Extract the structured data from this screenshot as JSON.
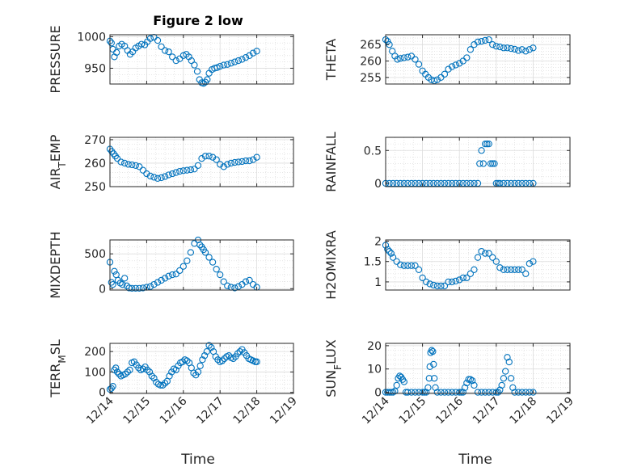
{
  "figure": {
    "title": "Figure 2 low",
    "xlabel": "Time"
  },
  "chart_data": [
    {
      "type": "scatter",
      "title": "Figure 2 low",
      "ylabel": "PRESSURE",
      "ylim": [
        925,
        1003
      ],
      "yticks": [
        950,
        1000
      ],
      "xticks": [
        "12/14",
        "12/15",
        "12/16",
        "12/17",
        "12/18",
        "12/19"
      ],
      "color": "#0072BD",
      "grid": true,
      "x": [
        0,
        0.04,
        0.08,
        0.12,
        0.18,
        0.25,
        0.32,
        0.4,
        0.48,
        0.55,
        0.62,
        0.7,
        0.78,
        0.86,
        0.95,
        1.02,
        1.1,
        1.2,
        1.3,
        1.4,
        1.5,
        1.6,
        1.7,
        1.8,
        1.9,
        2.0,
        2.08,
        2.15,
        2.22,
        2.3,
        2.38,
        2.44,
        2.5,
        2.55,
        2.6,
        2.65,
        2.7,
        2.78,
        2.85,
        2.92,
        3.0,
        3.1,
        3.2,
        3.3,
        3.4,
        3.5,
        3.6,
        3.7,
        3.8,
        3.9,
        4.0
      ],
      "y": [
        993,
        990,
        980,
        968,
        975,
        985,
        988,
        985,
        978,
        972,
        976,
        982,
        985,
        988,
        987,
        992,
        997,
        999,
        994,
        984,
        978,
        976,
        968,
        962,
        965,
        970,
        972,
        968,
        962,
        955,
        945,
        932,
        927,
        926,
        928,
        932,
        942,
        948,
        950,
        951,
        953,
        955,
        956,
        958,
        960,
        962,
        964,
        967,
        970,
        974,
        977
      ]
    },
    {
      "type": "scatter",
      "ylabel": "THETA",
      "ylim": [
        253,
        268
      ],
      "yticks": [
        255,
        260,
        265
      ],
      "xticks": [
        "12/14",
        "12/15",
        "12/16",
        "12/17",
        "12/18",
        "12/19"
      ],
      "color": "#0072BD",
      "grid": true,
      "x": [
        0,
        0.05,
        0.1,
        0.18,
        0.25,
        0.32,
        0.4,
        0.5,
        0.6,
        0.7,
        0.8,
        0.9,
        1.0,
        1.08,
        1.16,
        1.24,
        1.32,
        1.4,
        1.5,
        1.6,
        1.7,
        1.8,
        1.9,
        2.0,
        2.1,
        2.2,
        2.3,
        2.4,
        2.5,
        2.6,
        2.7,
        2.8,
        2.9,
        3.0,
        3.1,
        3.2,
        3.3,
        3.4,
        3.5,
        3.6,
        3.7,
        3.8,
        3.9,
        4.0
      ],
      "y": [
        266.5,
        266,
        265,
        263,
        261.5,
        260.5,
        260.8,
        261,
        261.2,
        261.5,
        260.5,
        259,
        257,
        256,
        255,
        254.3,
        254,
        254.3,
        255,
        256,
        257.5,
        258.3,
        258.8,
        259.3,
        260,
        261,
        263.5,
        265,
        265.8,
        266,
        266.3,
        266.5,
        265,
        264.5,
        264.3,
        264,
        264,
        263.8,
        263.6,
        263.2,
        263.5,
        263,
        263.5,
        264
      ]
    },
    {
      "type": "scatter",
      "ylabel": "AIR_TEMP",
      "ylim": [
        250,
        271
      ],
      "yticks": [
        250,
        260,
        270
      ],
      "xticks": [
        "12/14",
        "12/15",
        "12/16",
        "12/17",
        "12/18",
        "12/19"
      ],
      "color": "#0072BD",
      "grid": true,
      "x": [
        0,
        0.05,
        0.1,
        0.15,
        0.2,
        0.3,
        0.4,
        0.5,
        0.6,
        0.7,
        0.8,
        0.9,
        1.0,
        1.1,
        1.2,
        1.3,
        1.4,
        1.5,
        1.6,
        1.7,
        1.8,
        1.9,
        2.0,
        2.1,
        2.2,
        2.3,
        2.4,
        2.5,
        2.6,
        2.7,
        2.8,
        2.9,
        3.0,
        3.1,
        3.2,
        3.3,
        3.4,
        3.5,
        3.6,
        3.7,
        3.8,
        3.9,
        4.0
      ],
      "y": [
        266,
        265,
        264,
        263,
        262,
        260.5,
        260,
        259.5,
        259.3,
        259,
        258.5,
        257,
        255.5,
        254.5,
        254,
        253.5,
        253.8,
        254.3,
        255,
        255.5,
        256,
        256.5,
        256.8,
        257,
        257.2,
        257.5,
        259,
        262,
        263,
        263,
        262.5,
        261.5,
        259.5,
        258.5,
        259.5,
        260,
        260.3,
        260.5,
        260.7,
        261,
        261,
        261.5,
        262.5
      ]
    },
    {
      "type": "scatter",
      "ylabel": "RAINFALL",
      "ylim": [
        -0.05,
        0.7
      ],
      "yticks": [
        0,
        0.5
      ],
      "xticks": [
        "12/14",
        "12/15",
        "12/16",
        "12/17",
        "12/18",
        "12/19"
      ],
      "color": "#0072BD",
      "grid": true,
      "x": [
        0,
        0.1,
        0.2,
        0.3,
        0.4,
        0.5,
        0.6,
        0.7,
        0.8,
        0.9,
        1.0,
        1.1,
        1.2,
        1.3,
        1.4,
        1.5,
        1.6,
        1.7,
        1.8,
        1.9,
        2.0,
        2.1,
        2.2,
        2.3,
        2.4,
        2.5,
        2.55,
        2.6,
        2.65,
        2.7,
        2.75,
        2.8,
        2.85,
        2.9,
        2.95,
        3.0,
        3.05,
        3.1,
        3.2,
        3.3,
        3.4,
        3.5,
        3.6,
        3.7,
        3.8,
        3.9,
        4.0
      ],
      "y": [
        0,
        0,
        0,
        0,
        0,
        0,
        0,
        0,
        0,
        0,
        0,
        0,
        0,
        0,
        0,
        0,
        0,
        0,
        0,
        0,
        0,
        0,
        0,
        0,
        0,
        0,
        0.3,
        0.5,
        0.3,
        0.6,
        0.6,
        0.6,
        0.3,
        0.3,
        0.3,
        0,
        0,
        0,
        0,
        0,
        0,
        0,
        0,
        0,
        0,
        0,
        0
      ]
    },
    {
      "type": "scatter",
      "ylabel": "MIXDEPTH",
      "ylim": [
        -20,
        700
      ],
      "yticks": [
        0,
        500
      ],
      "xticks": [
        "12/14",
        "12/15",
        "12/16",
        "12/17",
        "12/18",
        "12/19"
      ],
      "color": "#0072BD",
      "grid": true,
      "x": [
        0,
        0.04,
        0.08,
        0.12,
        0.17,
        0.22,
        0.28,
        0.34,
        0.4,
        0.46,
        0.52,
        0.6,
        0.7,
        0.8,
        0.9,
        1.0,
        1.1,
        1.2,
        1.3,
        1.4,
        1.5,
        1.6,
        1.7,
        1.8,
        1.9,
        2.0,
        2.1,
        2.2,
        2.3,
        2.4,
        2.45,
        2.5,
        2.55,
        2.6,
        2.7,
        2.8,
        2.9,
        3.0,
        3.1,
        3.2,
        3.3,
        3.4,
        3.5,
        3.6,
        3.7,
        3.8,
        3.9,
        4.0
      ],
      "y": [
        380,
        90,
        60,
        250,
        200,
        120,
        80,
        60,
        150,
        40,
        10,
        5,
        5,
        5,
        10,
        20,
        30,
        60,
        90,
        120,
        150,
        180,
        200,
        210,
        260,
        320,
        400,
        520,
        650,
        700,
        630,
        600,
        560,
        520,
        450,
        380,
        280,
        200,
        100,
        40,
        20,
        10,
        30,
        60,
        100,
        120,
        60,
        20
      ]
    },
    {
      "type": "scatter",
      "ylabel": "H2OMIXRA",
      "ylim": [
        0.8,
        2.03
      ],
      "yticks": [
        1,
        1.5,
        2
      ],
      "xticks": [
        "12/14",
        "12/15",
        "12/16",
        "12/17",
        "12/18",
        "12/19"
      ],
      "color": "#0072BD",
      "grid": true,
      "x": [
        0,
        0.05,
        0.1,
        0.15,
        0.2,
        0.3,
        0.4,
        0.5,
        0.6,
        0.7,
        0.8,
        0.9,
        1.0,
        1.1,
        1.2,
        1.3,
        1.4,
        1.5,
        1.6,
        1.7,
        1.8,
        1.9,
        2.0,
        2.1,
        2.2,
        2.3,
        2.4,
        2.5,
        2.6,
        2.7,
        2.8,
        2.9,
        3.0,
        3.1,
        3.2,
        3.3,
        3.4,
        3.5,
        3.6,
        3.7,
        3.8,
        3.9,
        4.0
      ],
      "y": [
        1.9,
        1.8,
        1.75,
        1.7,
        1.6,
        1.5,
        1.42,
        1.4,
        1.4,
        1.4,
        1.4,
        1.3,
        1.1,
        1.0,
        0.95,
        0.92,
        0.9,
        0.9,
        0.9,
        1.0,
        1.0,
        1.02,
        1.05,
        1.1,
        1.1,
        1.2,
        1.3,
        1.6,
        1.75,
        1.7,
        1.7,
        1.6,
        1.5,
        1.35,
        1.3,
        1.3,
        1.3,
        1.3,
        1.3,
        1.3,
        1.2,
        1.45,
        1.5
      ]
    },
    {
      "type": "scatter",
      "ylabel": "TERR_MSL",
      "ylim": [
        -5,
        240
      ],
      "yticks": [
        0,
        100,
        200
      ],
      "xticks": [
        "12/14",
        "12/15",
        "12/16",
        "12/17",
        "12/18",
        "12/19"
      ],
      "color": "#0072BD",
      "grid": true,
      "x": [
        0,
        0.04,
        0.08,
        0.12,
        0.16,
        0.2,
        0.25,
        0.3,
        0.36,
        0.42,
        0.48,
        0.54,
        0.6,
        0.66,
        0.72,
        0.78,
        0.84,
        0.9,
        0.96,
        1.02,
        1.08,
        1.14,
        1.2,
        1.26,
        1.32,
        1.38,
        1.44,
        1.5,
        1.56,
        1.62,
        1.68,
        1.74,
        1.8,
        1.86,
        1.92,
        1.98,
        2.04,
        2.1,
        2.16,
        2.22,
        2.28,
        2.34,
        2.4,
        2.46,
        2.52,
        2.58,
        2.64,
        2.7,
        2.76,
        2.82,
        2.88,
        2.94,
        3.0,
        3.06,
        3.12,
        3.18,
        3.24,
        3.3,
        3.36,
        3.42,
        3.48,
        3.54,
        3.6,
        3.66,
        3.72,
        3.78,
        3.84,
        3.9,
        3.96,
        4.0
      ],
      "y": [
        15,
        20,
        30,
        110,
        120,
        100,
        90,
        80,
        85,
        90,
        100,
        110,
        145,
        150,
        135,
        120,
        110,
        115,
        125,
        110,
        100,
        80,
        70,
        50,
        40,
        35,
        35,
        45,
        55,
        80,
        100,
        115,
        110,
        130,
        145,
        150,
        160,
        155,
        145,
        120,
        95,
        85,
        100,
        130,
        160,
        180,
        200,
        230,
        220,
        200,
        175,
        160,
        150,
        155,
        165,
        175,
        180,
        170,
        165,
        175,
        190,
        200,
        210,
        195,
        180,
        165,
        160,
        155,
        150,
        150
      ]
    },
    {
      "type": "scatter",
      "ylabel": "SUN_FLUX",
      "ylim": [
        -0.5,
        21
      ],
      "yticks": [
        0,
        10,
        20
      ],
      "xticks": [
        "12/14",
        "12/15",
        "12/16",
        "12/17",
        "12/18",
        "12/19"
      ],
      "color": "#0072BD",
      "grid": true,
      "x": [
        0,
        0.05,
        0.1,
        0.15,
        0.2,
        0.25,
        0.3,
        0.34,
        0.38,
        0.42,
        0.46,
        0.5,
        0.55,
        0.6,
        0.7,
        0.8,
        0.9,
        1.0,
        1.05,
        1.1,
        1.15,
        1.18,
        1.2,
        1.22,
        1.25,
        1.28,
        1.3,
        1.32,
        1.35,
        1.4,
        1.5,
        1.6,
        1.7,
        1.8,
        1.9,
        2.0,
        2.05,
        2.1,
        2.15,
        2.2,
        2.25,
        2.3,
        2.35,
        2.4,
        2.5,
        2.6,
        2.7,
        2.8,
        2.9,
        3.0,
        3.05,
        3.1,
        3.15,
        3.2,
        3.25,
        3.3,
        3.35,
        3.4,
        3.45,
        3.5,
        3.6,
        3.7,
        3.8,
        3.9,
        4.0
      ],
      "y": [
        0,
        0,
        0,
        0,
        0,
        0.5,
        3,
        6,
        7,
        6.5,
        5.5,
        4.5,
        0,
        0,
        0,
        0,
        0,
        0,
        0,
        0,
        2,
        6,
        11,
        17,
        18,
        17.5,
        12,
        6,
        2,
        0,
        0,
        0,
        0,
        0,
        0,
        0,
        0,
        0,
        2,
        4,
        5.5,
        5.5,
        5,
        3,
        0,
        0,
        0,
        0,
        0,
        0,
        0,
        1,
        3,
        6,
        9,
        15,
        13,
        6,
        2,
        0,
        0,
        0,
        0,
        0,
        0
      ]
    }
  ]
}
